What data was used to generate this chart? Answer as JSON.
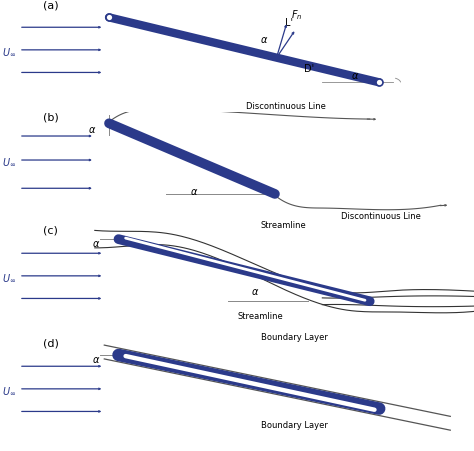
{
  "bg_color": "#ffffff",
  "plate_color": "#2B3A8A",
  "arrow_color": "#2B3A8A",
  "dark_line_color": "#555555",
  "text_color": "#000000",
  "panel_labels": [
    "(a)",
    "(b)",
    "(c)",
    "(d)"
  ],
  "fig_width": 4.74,
  "fig_height": 4.52,
  "dpi": 100
}
